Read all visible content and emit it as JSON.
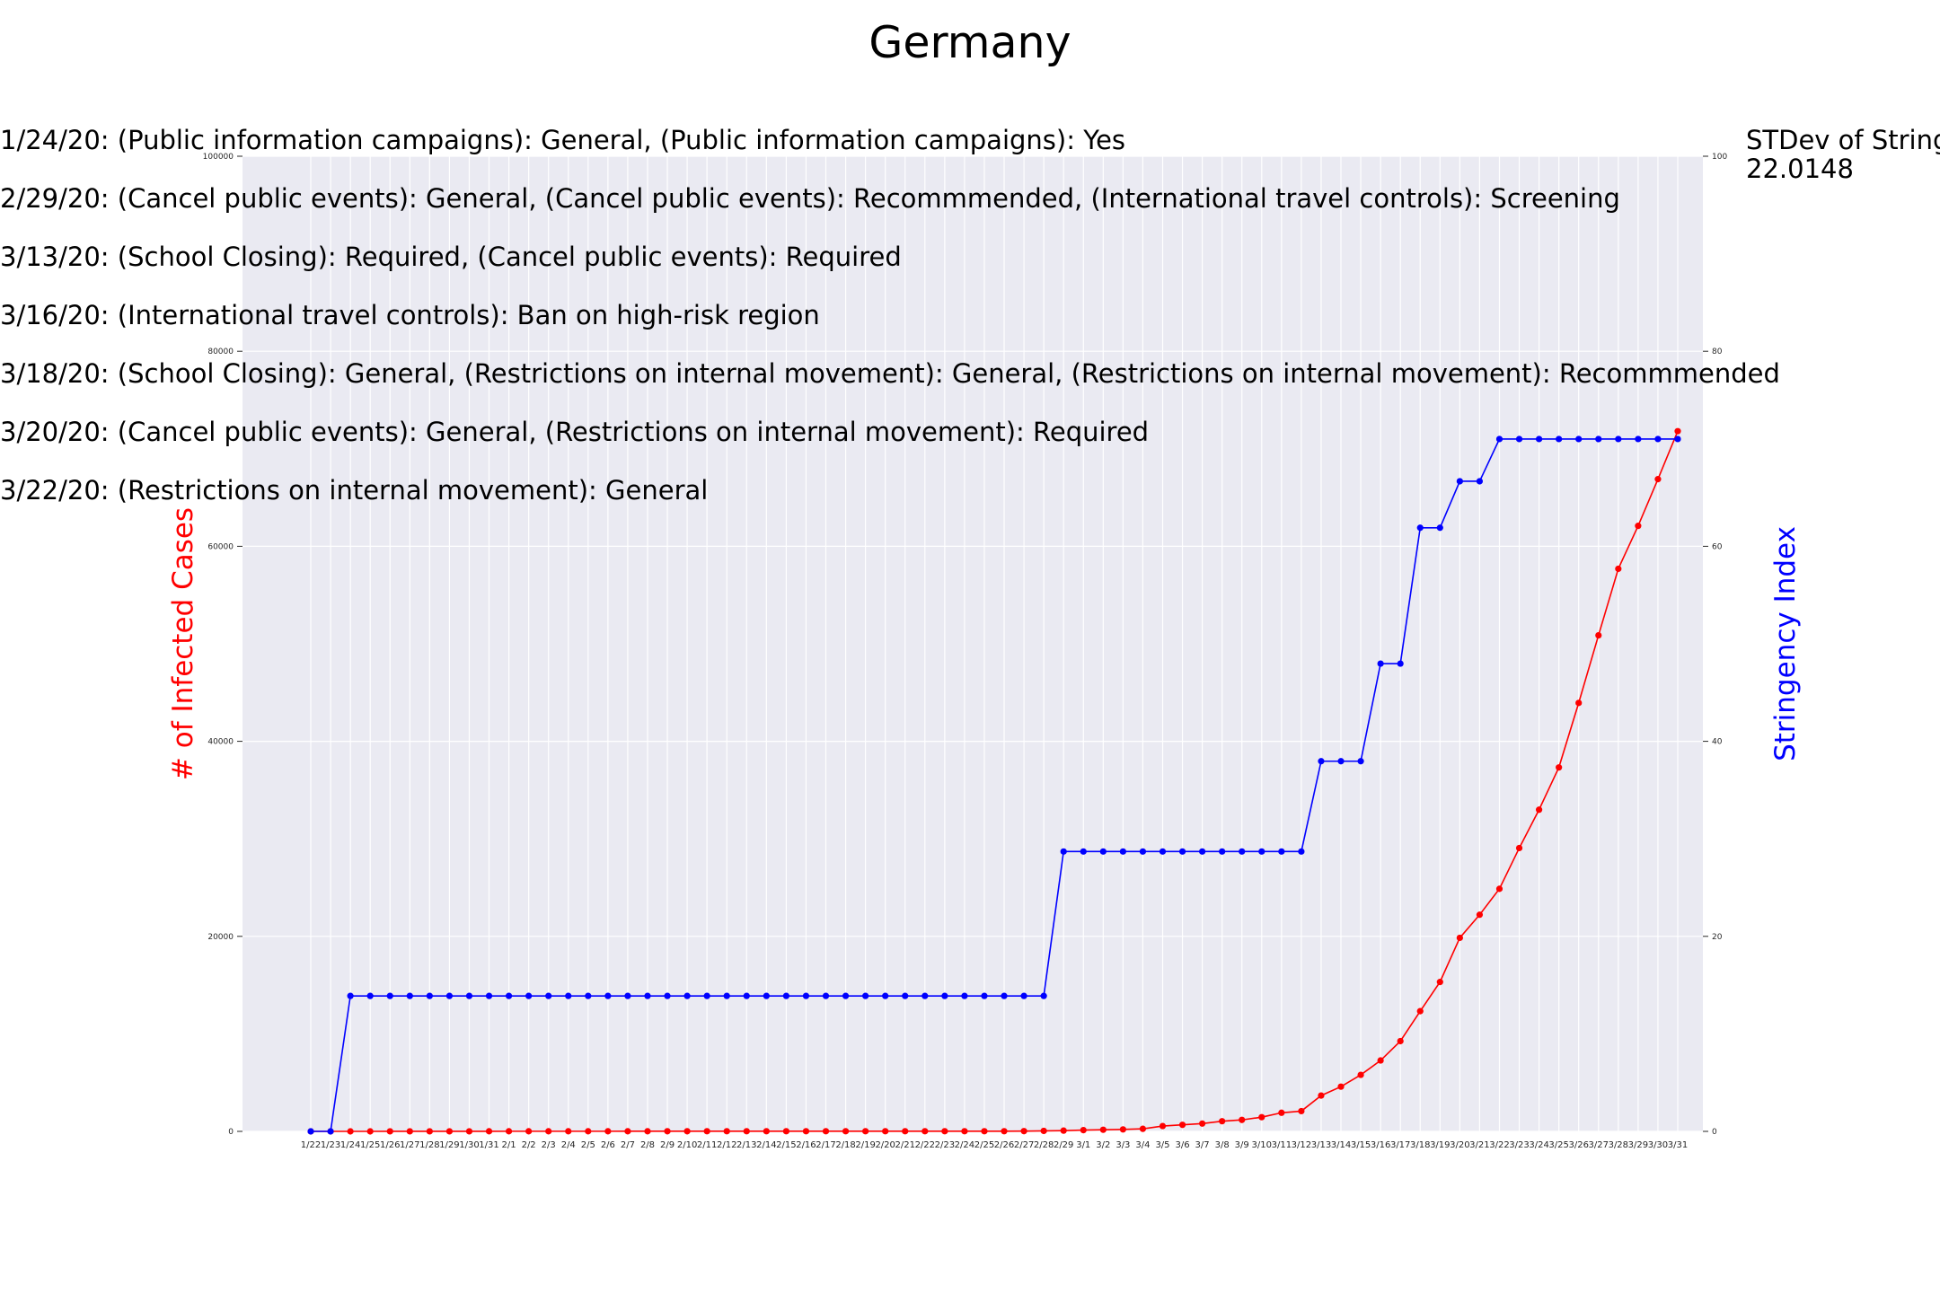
{
  "chart_data": {
    "type": "line",
    "title": "Germany",
    "ylabel": "# of Infected Cases",
    "y2label": "Stringency Index",
    "ylim": [
      0,
      100000
    ],
    "y2lim": [
      0,
      100
    ],
    "grid": true,
    "x": [
      "1/22",
      "1/23",
      "1/24",
      "1/25",
      "1/26",
      "1/27",
      "1/28",
      "1/29",
      "1/30",
      "1/31",
      "2/1",
      "2/2",
      "2/3",
      "2/4",
      "2/5",
      "2/6",
      "2/7",
      "2/8",
      "2/9",
      "2/10",
      "2/11",
      "2/12",
      "2/13",
      "2/14",
      "2/15",
      "2/16",
      "2/17",
      "2/18",
      "2/19",
      "2/20",
      "2/21",
      "2/22",
      "2/23",
      "2/24",
      "2/25",
      "2/26",
      "2/27",
      "2/28",
      "2/29",
      "3/1",
      "3/2",
      "3/3",
      "3/4",
      "3/5",
      "3/6",
      "3/7",
      "3/8",
      "3/9",
      "3/10",
      "3/11",
      "3/12",
      "3/13",
      "3/14",
      "3/15",
      "3/16",
      "3/17",
      "3/18",
      "3/19",
      "3/20",
      "3/21",
      "3/22",
      "3/23",
      "3/24",
      "3/25",
      "3/26",
      "3/27",
      "3/28",
      "3/29",
      "3/30",
      "3/31"
    ],
    "yticks": [
      0,
      20000,
      40000,
      60000,
      80000,
      100000
    ],
    "y2ticks": [
      0,
      20,
      40,
      60,
      80,
      100
    ],
    "series": [
      {
        "axis": "left",
        "color": "#ff0000",
        "values": [
          0,
          0,
          0,
          1,
          4,
          4,
          4,
          5,
          8,
          10,
          12,
          12,
          12,
          12,
          12,
          12,
          13,
          13,
          14,
          14,
          16,
          16,
          16,
          16,
          16,
          16,
          16,
          16,
          16,
          16,
          16,
          16,
          16,
          16,
          16,
          18,
          26,
          48,
          79,
          130,
          165,
          203,
          262,
          545,
          670,
          800,
          1040,
          1176,
          1457,
          1908,
          2078,
          3675,
          4585,
          5795,
          7272,
          9257,
          12327,
          15320,
          19848,
          22213,
          24873,
          29056,
          32986,
          37323,
          43938,
          50871,
          57695,
          62095,
          66885,
          71808
        ]
      },
      {
        "axis": "right",
        "color": "#0000ff",
        "values": [
          0,
          0,
          13.89,
          13.89,
          13.89,
          13.89,
          13.89,
          13.89,
          13.89,
          13.89,
          13.89,
          13.89,
          13.89,
          13.89,
          13.89,
          13.89,
          13.89,
          13.89,
          13.89,
          13.89,
          13.89,
          13.89,
          13.89,
          13.89,
          13.89,
          13.89,
          13.89,
          13.89,
          13.89,
          13.89,
          13.89,
          13.89,
          13.89,
          13.89,
          13.89,
          13.89,
          13.89,
          13.89,
          28.7,
          28.7,
          28.7,
          28.7,
          28.7,
          28.7,
          28.7,
          28.7,
          28.7,
          28.7,
          28.7,
          28.7,
          28.7,
          37.96,
          37.96,
          37.96,
          47.97,
          47.97,
          61.9,
          61.9,
          66.67,
          66.67,
          71.0,
          71.0,
          71.0,
          71.0,
          71.0,
          71.0,
          71.0,
          71.0,
          71.0,
          71.0
        ]
      }
    ],
    "annotations": [
      "1/24/20: (Public information campaigns): General, (Public information campaigns): Yes",
      "2/29/20: (Cancel public events): General, (Cancel public events): Recommmended, (International travel controls): Screening",
      "3/13/20: (School Closing): Required, (Cancel public events): Required",
      "3/16/20: (International travel controls): Ban on high-risk region",
      "3/18/20: (School Closing): General, (Restrictions on internal movement): General, (Restrictions on internal movement): Recommmended",
      "3/20/20: (Cancel public events): General, (Restrictions on internal movement): Required",
      "3/22/20: (Restrictions on internal movement): General"
    ],
    "stdev_label": "STDev of Stringency Index:",
    "stdev_value": "22.0148"
  }
}
